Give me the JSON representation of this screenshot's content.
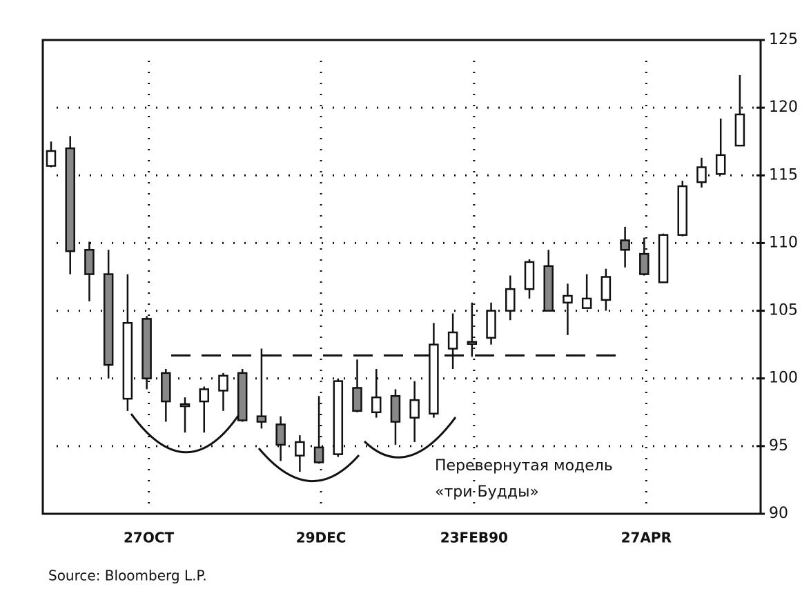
{
  "chart_data": {
    "type": "candlestick",
    "categories": [
      null,
      null,
      null,
      null,
      null,
      "27OCT",
      null,
      null,
      null,
      null,
      null,
      null,
      null,
      null,
      "29DEC",
      null,
      null,
      null,
      null,
      null,
      null,
      null,
      "23FEB90",
      null,
      null,
      null,
      null,
      null,
      null,
      null,
      null,
      "27APR",
      null,
      null,
      null,
      null,
      null
    ],
    "open": [
      115.7,
      117,
      109.5,
      107.7,
      98.5,
      104.4,
      100.4,
      98,
      98.3,
      99.1,
      100.4,
      97.2,
      96.6,
      94.3,
      94.9,
      94.4,
      99.3,
      97.5,
      98.7,
      97.1,
      97.4,
      102.2,
      102.6,
      103,
      105,
      106.6,
      108.3,
      105.6,
      105.2,
      105.8,
      110.2,
      109.2,
      107.1,
      110.6,
      114.5,
      115.1,
      117.2
    ],
    "high": [
      117.5,
      117.9,
      110.1,
      109.5,
      107.7,
      104.6,
      100.7,
      98.6,
      99.4,
      100.4,
      100.7,
      102.2,
      97.2,
      95.8,
      98.7,
      100,
      101.4,
      100.7,
      99.2,
      99.8,
      104.1,
      104.8,
      105.6,
      105.6,
      107.6,
      108.8,
      109.5,
      107,
      107.7,
      108.1,
      111.2,
      110.4,
      110.7,
      114.6,
      116.3,
      119.2,
      122.4
    ],
    "low": [
      115.6,
      107.7,
      105.7,
      100,
      97.6,
      99.2,
      96.8,
      96,
      96,
      97.6,
      96.8,
      96.3,
      93.9,
      93.1,
      93.7,
      94.2,
      97.5,
      97.1,
      95.1,
      95.3,
      97.1,
      100.7,
      101.6,
      102.5,
      104.3,
      105.9,
      105,
      103.2,
      105.2,
      105,
      108.2,
      107.6,
      107.1,
      110.5,
      114.1,
      115.1,
      117.2
    ],
    "close": [
      116.8,
      109.4,
      107.7,
      101,
      104.1,
      100,
      98.3,
      98.1,
      99.2,
      100.2,
      96.9,
      96.8,
      95.1,
      95.3,
      93.8,
      99.8,
      97.6,
      98.6,
      96.8,
      98.4,
      102.5,
      103.4,
      102.7,
      105,
      106.6,
      108.6,
      105,
      106.1,
      105.9,
      107.5,
      109.5,
      107.7,
      110.6,
      114.2,
      115.6,
      116.5,
      119.5
    ],
    "ylim": [
      90,
      125
    ],
    "yticks": [
      90,
      95,
      100,
      105,
      110,
      115,
      120,
      125
    ],
    "grid": true,
    "reference_line": 101.7,
    "annotation": [
      "Перевернутая модель",
      "«три Будды»"
    ],
    "source": "Source: Bloomberg L.P."
  }
}
